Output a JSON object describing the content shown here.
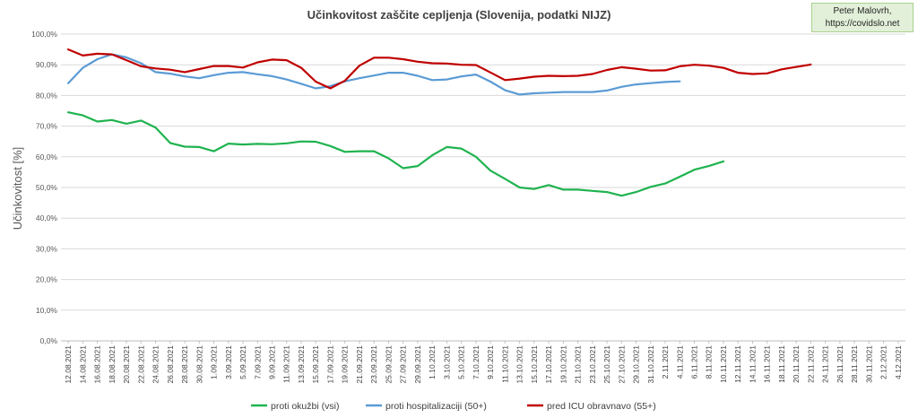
{
  "credit": {
    "line1": "Peter Malovrh,",
    "line2": "https://covidslo.net"
  },
  "colors": {
    "infection": "#1fb34f",
    "hospital": "#5b9bd5",
    "icu": "#c00000",
    "grid": "#d9d9d9",
    "axis": "#bfbfbf"
  },
  "chart_data": {
    "type": "line",
    "title": "Učinkovitost zaščite cepljenja (Slovenija, podatki NIJZ)",
    "xlabel": "",
    "ylabel": "Učinkovitost [%]",
    "ylim": [
      0,
      100
    ],
    "yticks": [
      "0,0%",
      "10,0%",
      "20,0%",
      "30,0%",
      "40,0%",
      "50,0%",
      "60,0%",
      "70,0%",
      "80,0%",
      "90,0%",
      "100,0%"
    ],
    "grid": true,
    "legend_position": "bottom",
    "x": [
      "12.08.2021",
      "14.08.2021",
      "16.08.2021",
      "18.08.2021",
      "20.08.2021",
      "22.08.2021",
      "24.08.2021",
      "26.08.2021",
      "28.08.2021",
      "30.08.2021",
      "1.09.2021",
      "3.09.2021",
      "5.09.2021",
      "7.09.2021",
      "9.09.2021",
      "11.09.2021",
      "13.09.2021",
      "15.09.2021",
      "17.09.2021",
      "19.09.2021",
      "21.09.2021",
      "23.09.2021",
      "25.09.2021",
      "27.09.2021",
      "29.09.2021",
      "1.10.2021",
      "3.10.2021",
      "5.10.2021",
      "7.10.2021",
      "9.10.2021",
      "11.10.2021",
      "13.10.2021",
      "15.10.2021",
      "17.10.2021",
      "19.10.2021",
      "21.10.2021",
      "23.10.2021",
      "25.10.2021",
      "27.10.2021",
      "29.10.2021",
      "31.10.2021",
      "2.11.2021",
      "4.11.2021",
      "6.11.2021",
      "8.11.2021",
      "10.11.2021",
      "12.11.2021",
      "14.11.2021",
      "16.11.2021",
      "18.11.2021",
      "20.11.2021",
      "22.11.2021",
      "24.11.2021",
      "26.11.2021",
      "28.11.2021",
      "30.11.2021",
      "2.12.2021",
      "4.12.2021"
    ],
    "series": [
      {
        "name": "proti okužbi (vsi)",
        "values": [
          74.5,
          73.5,
          71.5,
          72,
          70.8,
          71.8,
          69.5,
          64.5,
          63.3,
          63.2,
          61.8,
          64.3,
          64,
          64.2,
          64.1,
          64.4,
          65,
          64.9,
          63.5,
          61.6,
          61.8,
          61.8,
          59.5,
          56.3,
          57,
          60.5,
          63.2,
          62.7,
          60,
          55.5,
          52.8,
          50,
          49.5,
          50.8,
          49.3,
          49.3,
          48.9,
          48.5,
          47.3,
          48.5,
          50.2,
          51.3,
          53.5,
          55.8,
          57,
          58.5,
          null,
          null,
          null,
          null,
          null,
          null,
          null,
          null,
          null,
          null,
          null,
          null
        ]
      },
      {
        "name": "proti hospitalizaciji (50+)",
        "values": [
          84,
          89,
          91.8,
          93.4,
          92.4,
          90.5,
          87.6,
          87.1,
          86.2,
          85.6,
          86.6,
          87.4,
          87.6,
          86.9,
          86.3,
          85.2,
          83.8,
          82.3,
          83,
          84.6,
          85.6,
          86.5,
          87.4,
          87.4,
          86.4,
          85,
          85.2,
          86.2,
          86.8,
          84.5,
          81.7,
          80.3,
          80.7,
          80.9,
          81.1,
          81.1,
          81.1,
          81.6,
          82.8,
          83.6,
          84,
          84.4,
          84.6,
          null,
          null,
          null,
          null,
          null,
          null,
          null,
          null,
          null,
          null,
          null,
          null,
          null,
          null,
          null
        ]
      },
      {
        "name": "pred ICU obravnavo (55+)",
        "values": [
          95,
          93,
          93.6,
          93.4,
          91.5,
          89.5,
          88.8,
          88.4,
          87.6,
          88.6,
          89.6,
          89.6,
          89.1,
          90.8,
          91.7,
          91.5,
          89,
          84.5,
          82.3,
          84.8,
          89.7,
          92.3,
          92.3,
          91.8,
          91,
          90.5,
          90.4,
          90,
          89.9,
          87.5,
          85,
          85.5,
          86.1,
          86.4,
          86.3,
          86.4,
          87,
          88.3,
          89.2,
          88.7,
          88.1,
          88.2,
          89.5,
          90,
          89.7,
          89,
          87.4,
          87,
          87.2,
          88.5,
          89.3,
          90.1,
          null,
          null,
          null,
          null,
          null,
          null
        ]
      }
    ]
  }
}
